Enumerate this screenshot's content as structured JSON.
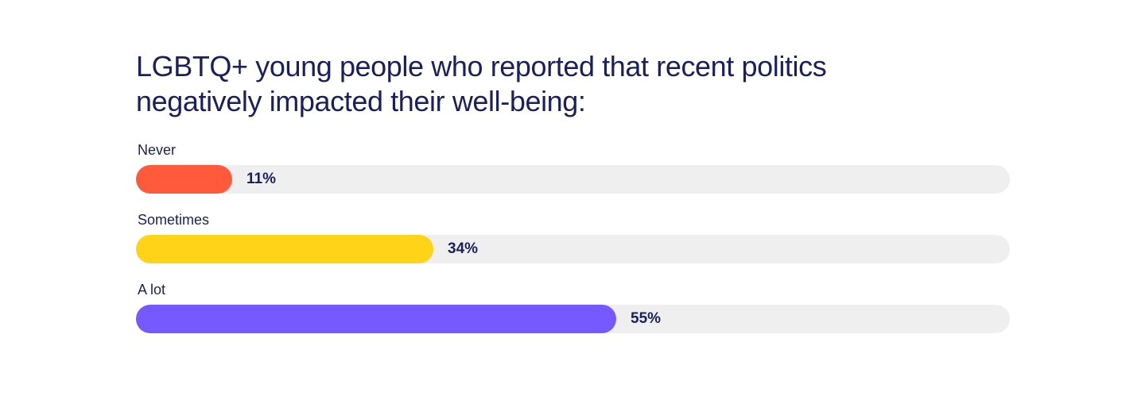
{
  "chart_data": {
    "type": "bar",
    "orientation": "horizontal",
    "title": "LGBTQ+ young people who reported that recent politics negatively impacted their well-being:",
    "xlim": [
      0,
      100
    ],
    "categories": [
      "Never",
      "Sometimes",
      "A lot"
    ],
    "values": [
      11,
      34,
      55
    ],
    "value_labels": [
      "11%",
      "34%",
      "55%"
    ],
    "colors": [
      "#ff5a3c",
      "#ffd317",
      "#765aff"
    ],
    "track_color": "#efeff0"
  }
}
